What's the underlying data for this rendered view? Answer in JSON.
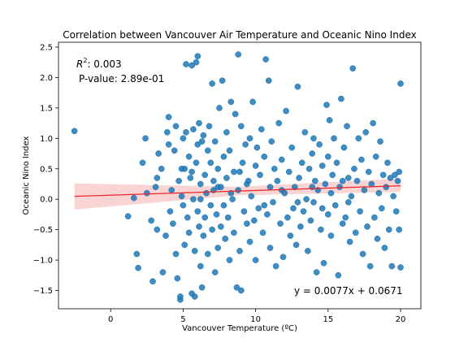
{
  "chart_data": {
    "type": "scatter",
    "title": "Correlation between Vancouver Air Temperature and Oceanic Nino Index",
    "xlabel": "Vancouver Temperature (ºC)",
    "ylabel": "Oceanic Nino Index",
    "xlim": [
      -3.6,
      21.4
    ],
    "ylim": [
      -1.8,
      2.58
    ],
    "xticks": [
      0,
      5,
      10,
      15,
      20
    ],
    "yticks": [
      -1.5,
      -1.0,
      -0.5,
      0.0,
      0.5,
      1.0,
      1.5,
      2.0,
      2.5
    ],
    "xtick_labels": [
      "0",
      "5",
      "10",
      "15",
      "20"
    ],
    "ytick_labels": [
      "−1.5",
      "−1.0",
      "−0.5",
      "0.0",
      "0.5",
      "1.0",
      "1.5",
      "2.0",
      "2.5"
    ],
    "grid": false,
    "annotations": {
      "r2_label": "R",
      "r2_sup": "2",
      "r2_value": ": 0.003",
      "pvalue": "P-value: 2.89e-01",
      "equation": "y = 0.0077x + 0.0671"
    },
    "regression": {
      "slope": 0.0077,
      "intercept": 0.0671,
      "x_range": [
        -2.5,
        20.0
      ],
      "ci_lower_start": -0.17,
      "ci_upper_start": 0.26,
      "ci_lower_end": 0.12,
      "ci_upper_end": 0.34
    },
    "colors": {
      "points": "#1f77b4",
      "regression_line": "#e8262b",
      "ci_band": "#f7b6b6",
      "equation_text": "#e8262b"
    },
    "points": [
      [
        -2.5,
        1.12
      ],
      [
        1.2,
        -0.28
      ],
      [
        1.6,
        0.02
      ],
      [
        1.8,
        -0.9
      ],
      [
        1.9,
        -1.13
      ],
      [
        2.2,
        0.6
      ],
      [
        2.4,
        1.0
      ],
      [
        2.5,
        0.1
      ],
      [
        2.8,
        -0.35
      ],
      [
        2.9,
        -1.35
      ],
      [
        3.1,
        0.2
      ],
      [
        3.2,
        -0.5
      ],
      [
        3.2,
        0.35
      ],
      [
        3.3,
        0.75
      ],
      [
        3.5,
        0.5
      ],
      [
        3.6,
        -1.2
      ],
      [
        3.8,
        -0.6
      ],
      [
        3.9,
        1.1
      ],
      [
        4.0,
        1.35
      ],
      [
        4.0,
        0.9
      ],
      [
        4.1,
        -0.2
      ],
      [
        4.2,
        0.15
      ],
      [
        4.3,
        -0.4
      ],
      [
        4.4,
        0.8
      ],
      [
        4.5,
        1.2
      ],
      [
        4.5,
        -0.9
      ],
      [
        4.6,
        -1.3
      ],
      [
        4.7,
        0.3
      ],
      [
        4.8,
        -1.6
      ],
      [
        4.8,
        -1.65
      ],
      [
        4.9,
        0.05
      ],
      [
        5.0,
        1.0
      ],
      [
        5.0,
        -0.1
      ],
      [
        5.1,
        -0.75
      ],
      [
        5.1,
        0.5
      ],
      [
        5.2,
        2.22
      ],
      [
        5.2,
        1.1
      ],
      [
        5.3,
        -0.3
      ],
      [
        5.4,
        0.7
      ],
      [
        5.4,
        -0.55
      ],
      [
        5.5,
        0.35
      ],
      [
        5.6,
        2.2
      ],
      [
        5.6,
        -1.55
      ],
      [
        5.7,
        1.15
      ],
      [
        5.7,
        0.0
      ],
      [
        5.8,
        -0.85
      ],
      [
        5.8,
        -1.6
      ],
      [
        5.9,
        2.25
      ],
      [
        5.9,
        0.6
      ],
      [
        6.0,
        2.35
      ],
      [
        6.0,
        0.9
      ],
      [
        6.0,
        -0.2
      ],
      [
        6.1,
        1.25
      ],
      [
        6.1,
        -0.45
      ],
      [
        6.2,
        0.25
      ],
      [
        6.2,
        -1.1
      ],
      [
        6.3,
        -1.45
      ],
      [
        6.3,
        0.95
      ],
      [
        6.4,
        1.05
      ],
      [
        6.4,
        -0.6
      ],
      [
        6.5,
        0.4
      ],
      [
        6.5,
        -0.3
      ],
      [
        6.6,
        0.1
      ],
      [
        6.7,
        0.8
      ],
      [
        6.7,
        -0.9
      ],
      [
        6.8,
        1.2
      ],
      [
        6.9,
        -0.1
      ],
      [
        6.9,
        0.6
      ],
      [
        7.0,
        1.9
      ],
      [
        7.0,
        -0.5
      ],
      [
        7.1,
        0.3
      ],
      [
        7.2,
        0.95
      ],
      [
        7.2,
        -1.2
      ],
      [
        7.3,
        -0.25
      ],
      [
        7.4,
        0.5
      ],
      [
        7.4,
        -0.8
      ],
      [
        7.5,
        1.5
      ],
      [
        7.6,
        0.2
      ],
      [
        7.6,
        -0.45
      ],
      [
        7.7,
        1.95
      ],
      [
        7.8,
        0.7
      ],
      [
        7.8,
        -0.1
      ],
      [
        7.9,
        -0.65
      ],
      [
        8.0,
        1.1
      ],
      [
        8.0,
        0.35
      ],
      [
        8.1,
        -0.3
      ],
      [
        8.2,
        -1.0
      ],
      [
        8.2,
        0.8
      ],
      [
        8.3,
        1.6
      ],
      [
        8.4,
        0.0
      ],
      [
        8.5,
        -0.55
      ],
      [
        8.5,
        0.45
      ],
      [
        8.6,
        1.4
      ],
      [
        8.7,
        -1.45
      ],
      [
        8.8,
        2.38
      ],
      [
        8.8,
        0.15
      ],
      [
        8.9,
        -0.85
      ],
      [
        9.0,
        -1.5
      ],
      [
        9.0,
        1.2
      ],
      [
        9.1,
        0.6
      ],
      [
        9.2,
        -0.2
      ],
      [
        9.3,
        0.9
      ],
      [
        9.4,
        -0.4
      ],
      [
        9.5,
        0.3
      ],
      [
        9.6,
        1.0
      ],
      [
        9.6,
        -0.7
      ],
      [
        9.7,
        0.05
      ],
      [
        9.8,
        1.6
      ],
      [
        9.9,
        -0.35
      ],
      [
        10.0,
        0.55
      ],
      [
        10.0,
        -1.0
      ],
      [
        10.1,
        0.85
      ],
      [
        10.2,
        -0.15
      ],
      [
        10.3,
        0.4
      ],
      [
        10.4,
        1.15
      ],
      [
        10.5,
        -0.55
      ],
      [
        10.6,
        0.7
      ],
      [
        10.7,
        2.3
      ],
      [
        10.8,
        -0.25
      ],
      [
        10.9,
        1.95
      ],
      [
        11.0,
        0.2
      ],
      [
        11.0,
        -0.8
      ],
      [
        11.1,
        0.95
      ],
      [
        11.2,
        -0.05
      ],
      [
        11.3,
        0.5
      ],
      [
        11.4,
        -1.1
      ],
      [
        11.5,
        0.3
      ],
      [
        11.6,
        1.25
      ],
      [
        11.7,
        -0.4
      ],
      [
        11.8,
        0.65
      ],
      [
        11.9,
        -0.95
      ],
      [
        12.0,
        0.1
      ],
      [
        12.1,
        1.45
      ],
      [
        12.2,
        -0.3
      ],
      [
        12.3,
        0.45
      ],
      [
        12.4,
        -0.6
      ],
      [
        12.5,
        0.85
      ],
      [
        12.6,
        -0.15
      ],
      [
        12.7,
        0.2
      ],
      [
        12.8,
        -0.75
      ],
      [
        12.9,
        1.85
      ],
      [
        13.0,
        0.35
      ],
      [
        13.1,
        -0.45
      ],
      [
        13.2,
        0.6
      ],
      [
        13.3,
        -0.2
      ],
      [
        13.4,
        1.1
      ],
      [
        13.5,
        0.0
      ],
      [
        13.6,
        -0.85
      ],
      [
        13.7,
        0.5
      ],
      [
        13.8,
        -0.35
      ],
      [
        13.9,
        0.75
      ],
      [
        14.0,
        1.0
      ],
      [
        14.0,
        -0.05
      ],
      [
        14.1,
        0.3
      ],
      [
        14.2,
        -1.2
      ],
      [
        14.3,
        0.15
      ],
      [
        14.4,
        0.9
      ],
      [
        14.5,
        -0.5
      ],
      [
        14.6,
        0.55
      ],
      [
        14.7,
        -1.05
      ],
      [
        14.8,
        0.25
      ],
      [
        14.9,
        1.55
      ],
      [
        15.0,
        -0.25
      ],
      [
        15.0,
        0.7
      ],
      [
        15.1,
        1.3
      ],
      [
        15.2,
        -0.6
      ],
      [
        15.3,
        0.4
      ],
      [
        15.4,
        1.0
      ],
      [
        15.5,
        -0.1
      ],
      [
        15.6,
        0.6
      ],
      [
        15.7,
        -1.25
      ],
      [
        15.8,
        0.2
      ],
      [
        15.9,
        1.65
      ],
      [
        16.0,
        -0.4
      ],
      [
        16.1,
        0.85
      ],
      [
        16.2,
        -0.3
      ],
      [
        16.3,
        1.2
      ],
      [
        16.4,
        0.35
      ],
      [
        16.5,
        -0.7
      ],
      [
        16.6,
        0.05
      ],
      [
        16.7,
        2.15
      ],
      [
        16.8,
        0.5
      ],
      [
        16.9,
        -0.55
      ],
      [
        17.0,
        0.3
      ],
      [
        17.1,
        1.0
      ],
      [
        17.2,
        -0.2
      ],
      [
        17.3,
        0.65
      ],
      [
        17.4,
        -0.9
      ],
      [
        17.5,
        0.15
      ],
      [
        17.6,
        1.1
      ],
      [
        17.7,
        -0.45
      ],
      [
        17.8,
        0.45
      ],
      [
        17.9,
        -1.1
      ],
      [
        18.0,
        0.25
      ],
      [
        18.1,
        1.25
      ],
      [
        18.2,
        -0.3
      ],
      [
        18.3,
        0.7
      ],
      [
        18.4,
        -0.65
      ],
      [
        18.5,
        0.1
      ],
      [
        18.6,
        0.95
      ],
      [
        18.7,
        -0.15
      ],
      [
        18.8,
        0.4
      ],
      [
        18.9,
        -0.8
      ],
      [
        19.0,
        0.2
      ],
      [
        19.1,
        0.6
      ],
      [
        19.2,
        -0.5
      ],
      [
        19.3,
        0.35
      ],
      [
        19.4,
        -1.1
      ],
      [
        19.5,
        0.05
      ],
      [
        19.6,
        0.4
      ],
      [
        19.7,
        -0.2
      ],
      [
        19.8,
        0.3
      ],
      [
        19.9,
        0.45
      ],
      [
        19.9,
        -0.5
      ],
      [
        20.0,
        1.9
      ],
      [
        20.0,
        -1.12
      ],
      [
        16.0,
        0.3
      ],
      [
        16.4,
        -0.05
      ],
      [
        15.2,
        0.1
      ],
      [
        14.6,
        -0.15
      ],
      [
        13.9,
        0.2
      ],
      [
        12.9,
        -0.05
      ],
      [
        11.8,
        0.15
      ],
      [
        10.6,
        -0.1
      ],
      [
        9.4,
        0.25
      ],
      [
        8.3,
        0.1
      ],
      [
        7.1,
        0.15
      ],
      [
        6.2,
        0.0
      ],
      [
        5.6,
        0.45
      ],
      [
        4.9,
        0.5
      ],
      [
        7.4,
        0.2
      ],
      [
        8.9,
        0.45
      ]
    ]
  }
}
